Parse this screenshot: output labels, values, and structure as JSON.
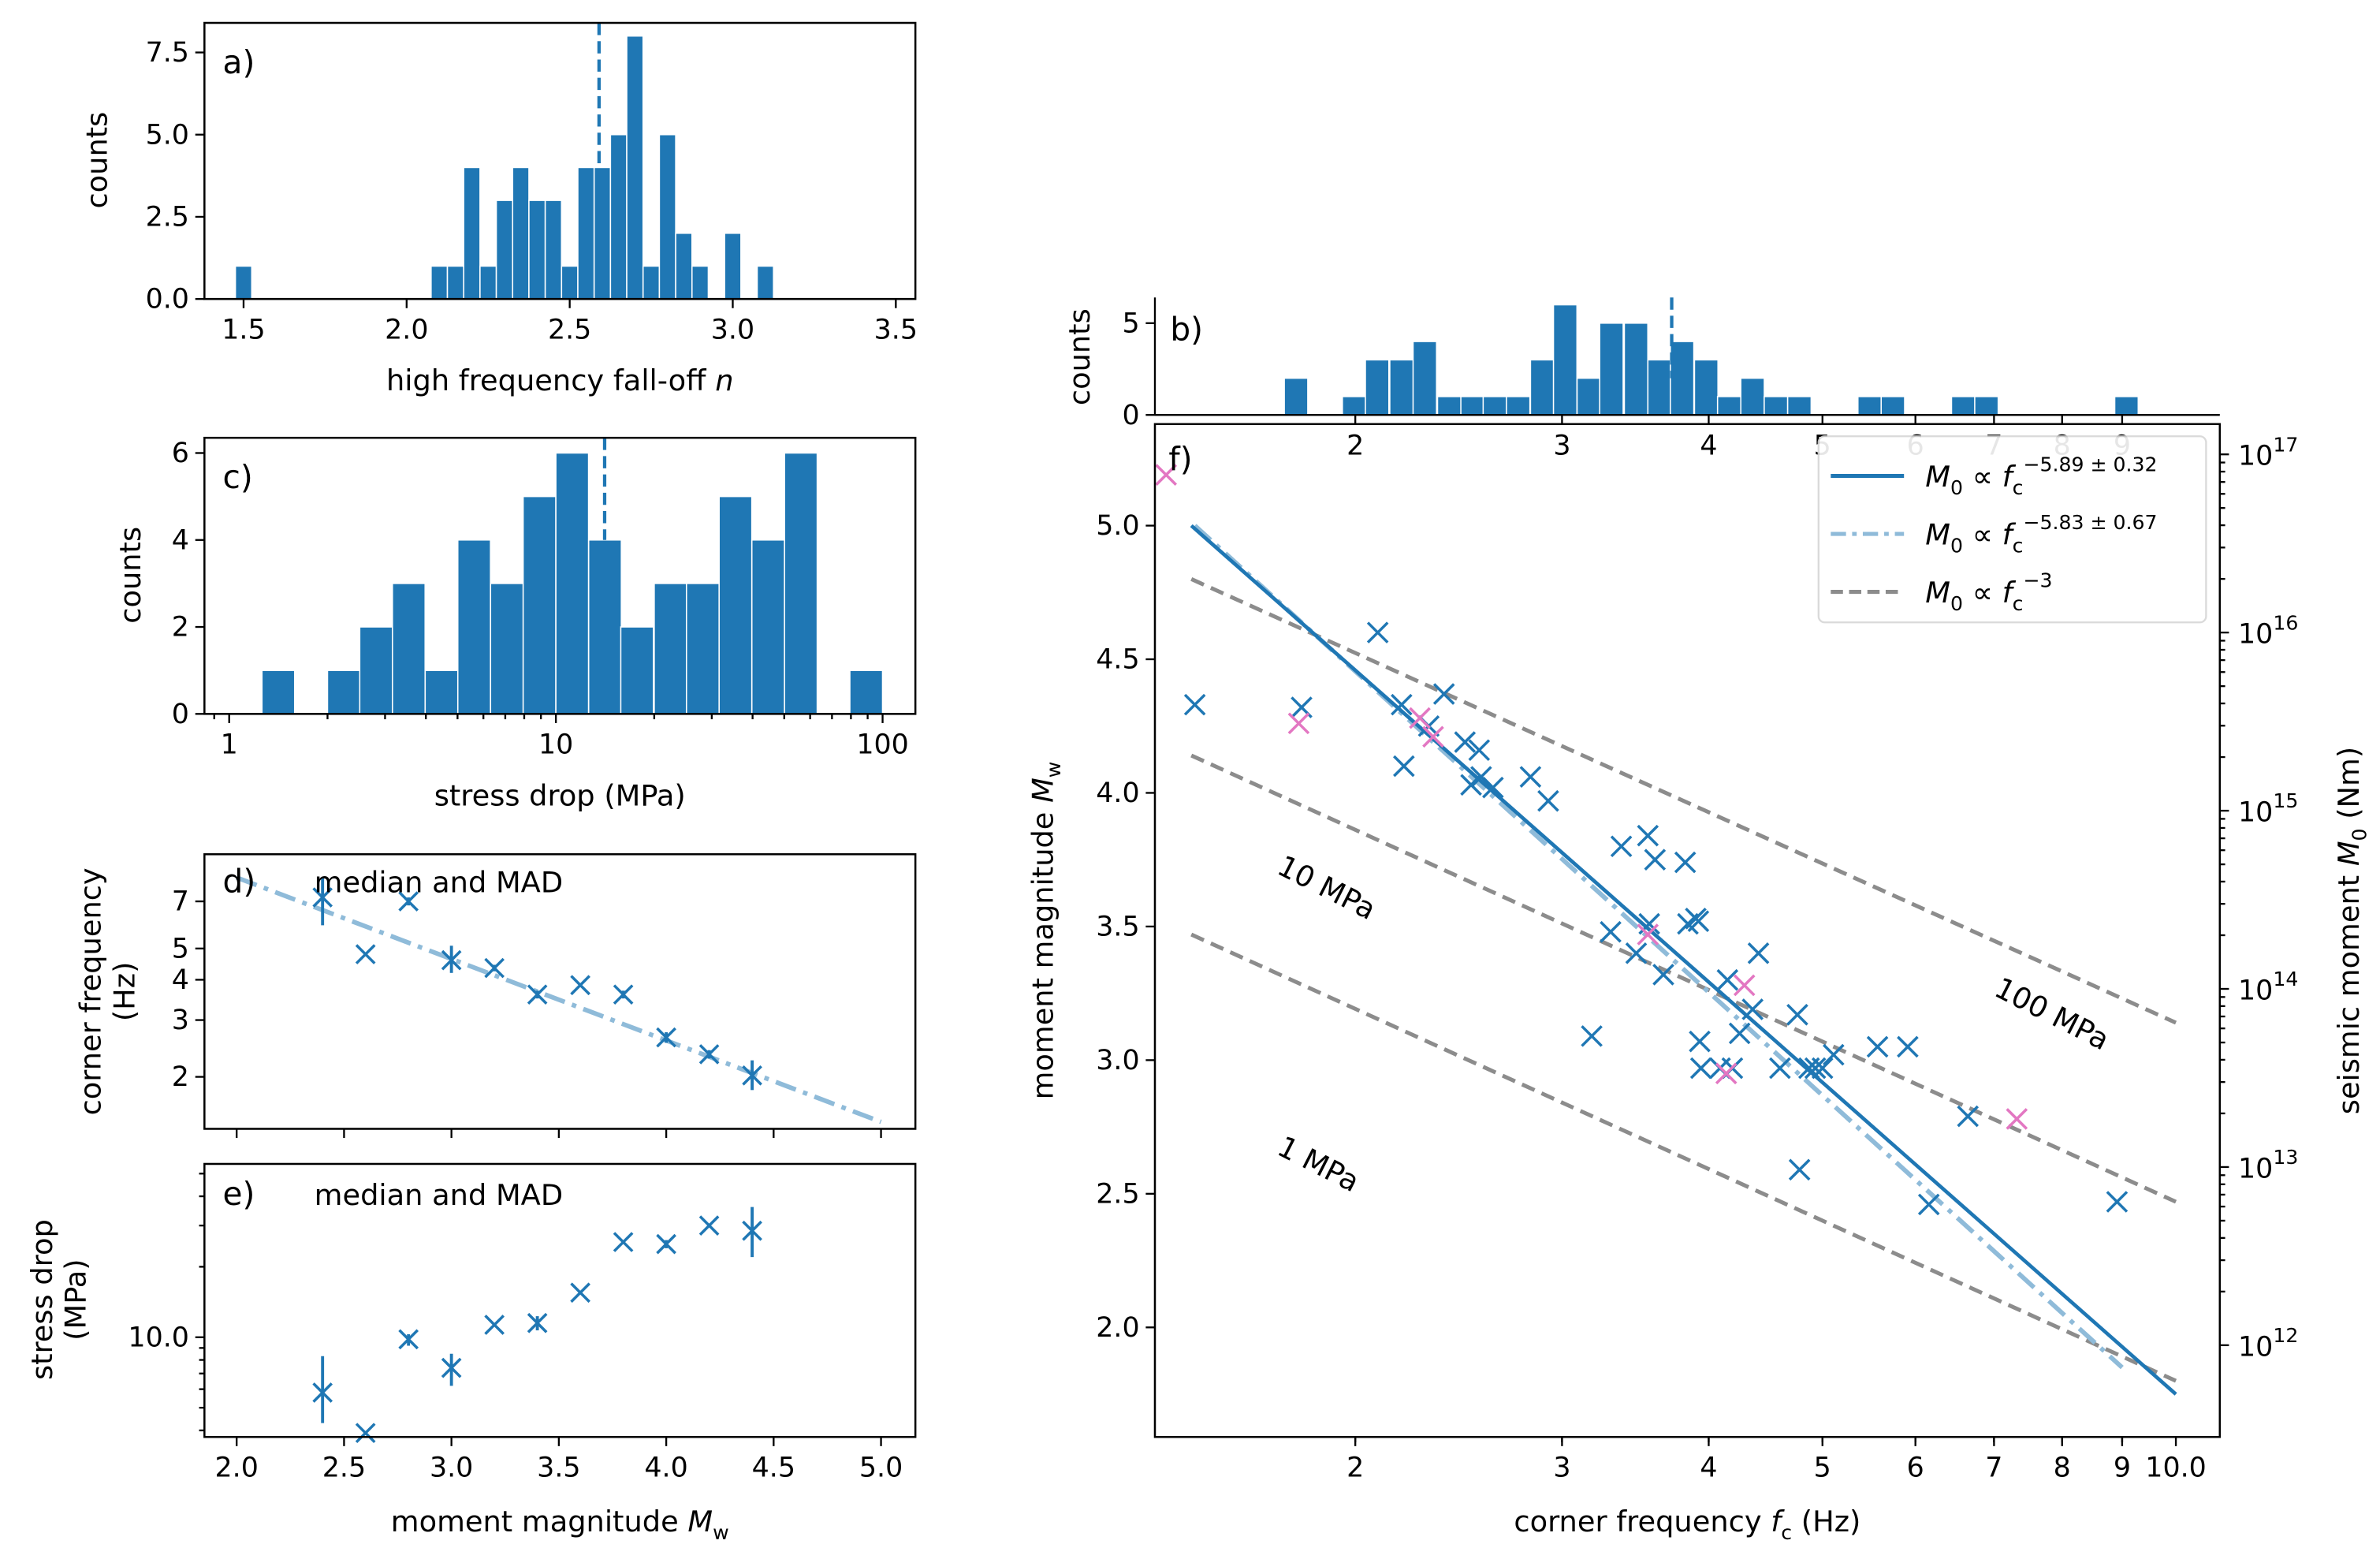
{
  "colors": {
    "bar": "#1f77b4",
    "marker_main": "#1f77b4",
    "marker_highlight": "#e377c2",
    "fit_solid": "#1f77b4",
    "fit_dashdot": "#8fbbd9",
    "stress_lines": "#8c8c8c"
  },
  "chart_data": [
    {
      "id": "a",
      "type": "bar",
      "panel_label": "a)",
      "xlabel": "high frequency fall-off n",
      "ylabel": "counts",
      "xlim": [
        1.38,
        3.56
      ],
      "ylim": [
        0,
        8.4
      ],
      "xticks": [
        1.5,
        2.0,
        2.5,
        3.0,
        3.5
      ],
      "xtick_labels": [
        "1.5",
        "2.0",
        "2.5",
        "3.0",
        "3.5"
      ],
      "yticks": [
        0.0,
        2.5,
        5.0,
        7.5
      ],
      "ytick_labels": [
        "0.0",
        "2.5",
        "5.0",
        "7.5"
      ],
      "bin_width": 0.05,
      "bin_starts": [
        1.475,
        2.075,
        2.125,
        2.175,
        2.225,
        2.275,
        2.325,
        2.375,
        2.425,
        2.475,
        2.525,
        2.575,
        2.625,
        2.675,
        2.725,
        2.775,
        2.825,
        2.875,
        2.975,
        3.075
      ],
      "values": [
        1,
        1,
        1,
        4,
        1,
        3,
        4,
        3,
        3,
        1,
        4,
        4,
        5,
        8,
        1,
        5,
        2,
        1,
        2,
        1
      ],
      "median_line": 2.59
    },
    {
      "id": "b",
      "type": "bar",
      "panel_label": "b)",
      "xlabel": "",
      "ylabel": "counts",
      "xscale": "log",
      "xlim": [
        1.35,
        10.9
      ],
      "ylim": [
        0,
        6.4
      ],
      "yticks": [
        0,
        5
      ],
      "ytick_labels": [
        "0",
        "5"
      ],
      "xticks": [
        2,
        3,
        4,
        5,
        6,
        7,
        8,
        9
      ],
      "xtick_labels": [
        "2",
        "3",
        "4",
        "5",
        "6",
        "7",
        "8",
        "9"
      ],
      "bin_log_width": 0.02,
      "bin_starts": [
        1.74,
        1.95,
        2.04,
        2.14,
        2.24,
        2.35,
        2.46,
        2.57,
        2.69,
        2.82,
        2.95,
        3.09,
        3.23,
        3.39,
        3.55,
        3.71,
        3.89,
        4.07,
        4.26,
        4.46,
        4.67,
        5.36,
        5.61,
        6.44,
        6.74,
        8.87
      ],
      "values": [
        2,
        1,
        3,
        3,
        4,
        1,
        1,
        1,
        1,
        3,
        6,
        2,
        5,
        5,
        3,
        4,
        3,
        1,
        2,
        1,
        1,
        1,
        1,
        1,
        1,
        1
      ],
      "median_line": 3.72
    },
    {
      "id": "c",
      "type": "bar",
      "panel_label": "c)",
      "xlabel": "stress drop (MPa)",
      "ylabel": "counts",
      "xscale": "log",
      "xlim": [
        0.84,
        126
      ],
      "ylim": [
        0,
        6.35
      ],
      "xticks": [
        1,
        10,
        100
      ],
      "xtick_labels": [
        "1",
        "10",
        "100"
      ],
      "yticks": [
        0,
        2,
        4,
        6
      ],
      "ytick_labels": [
        "0",
        "2",
        "4",
        "6"
      ],
      "bin_log_width": 0.1,
      "bin_starts": [
        1.26,
        2.0,
        2.51,
        3.16,
        3.98,
        5.01,
        6.31,
        7.94,
        10.0,
        12.6,
        15.8,
        20.0,
        25.1,
        31.6,
        39.8,
        50.1,
        79.4
      ],
      "values": [
        1,
        1,
        2,
        3,
        1,
        4,
        3,
        5,
        6,
        4,
        2,
        3,
        3,
        5,
        4,
        6,
        1
      ],
      "median_line": 14.1
    },
    {
      "id": "d",
      "type": "scatter",
      "panel_label": "d)",
      "annotation": "median and MAD",
      "xlabel": "",
      "ylabel": "corner frequency (Hz)",
      "yscale": "log",
      "xlim": [
        1.85,
        5.16
      ],
      "ylim": [
        1.38,
        9.8
      ],
      "xticks": [
        2.0,
        2.5,
        3.0,
        3.5,
        4.0,
        4.5,
        5.0
      ],
      "yticks": [
        2,
        3,
        4,
        5,
        7
      ],
      "ytick_labels": [
        "2",
        "3",
        "4",
        "5",
        "7"
      ],
      "x": [
        2.4,
        2.6,
        2.8,
        3.0,
        3.2,
        3.4,
        3.6,
        3.8,
        4.0,
        4.2,
        4.4
      ],
      "y": [
        7.2,
        4.8,
        7.0,
        4.6,
        4.35,
        3.6,
        3.85,
        3.6,
        2.65,
        2.35,
        2.02
      ],
      "yerr_low": [
        5.9,
        4.8,
        6.8,
        4.2,
        4.25,
        3.5,
        3.85,
        3.5,
        2.55,
        2.28,
        1.82
      ],
      "yerr_high": [
        8.3,
        4.8,
        7.2,
        5.1,
        4.45,
        3.7,
        3.85,
        3.7,
        2.75,
        2.42,
        2.25
      ],
      "fit_line": {
        "x": [
          2.0,
          5.0
        ],
        "y": [
          8.3,
          1.45
        ]
      }
    },
    {
      "id": "e",
      "type": "scatter",
      "panel_label": "e)",
      "annotation": "median and MAD",
      "xlabel": "moment magnitude Mw",
      "ylabel": "stress drop (MPa)",
      "yscale": "log",
      "xlim": [
        1.85,
        5.16
      ],
      "ylim": [
        3.75,
        55
      ],
      "xticks": [
        2.0,
        2.5,
        3.0,
        3.5,
        4.0,
        4.5,
        5.0
      ],
      "xtick_labels": [
        "2.0",
        "2.5",
        "3.0",
        "3.5",
        "4.0",
        "4.5",
        "5.0"
      ],
      "yticks": [
        10.0
      ],
      "ytick_labels": [
        "10.0"
      ],
      "x": [
        2.4,
        2.6,
        2.8,
        3.0,
        3.2,
        3.4,
        3.6,
        3.8,
        4.0,
        4.2,
        4.4
      ],
      "y": [
        5.8,
        3.9,
        9.8,
        7.4,
        11.3,
        11.5,
        15.5,
        25.5,
        25.0,
        30.0,
        28.5
      ],
      "yerr_low": [
        4.3,
        3.9,
        9.2,
        6.2,
        11.3,
        10.7,
        15.5,
        25.0,
        24.0,
        30.0,
        22.0
      ],
      "yerr_high": [
        8.3,
        3.9,
        10.3,
        8.5,
        11.3,
        12.3,
        15.5,
        26.0,
        26.0,
        30.0,
        36.0
      ]
    },
    {
      "id": "f",
      "type": "scatter",
      "panel_label": "f)",
      "xlabel": "corner frequency fc (Hz)",
      "ylabel": "moment magnitude Mw",
      "ylabel_right": "seismic moment M0 (Nm)",
      "xscale": "log",
      "xlim": [
        1.35,
        10.9
      ],
      "ylim": [
        1.59,
        5.38
      ],
      "xticks": [
        2,
        3,
        4,
        5,
        6,
        7,
        8,
        9,
        10
      ],
      "xtick_labels": [
        "2",
        "3",
        "4",
        "5",
        "6",
        "7",
        "8",
        "9",
        "10.0"
      ],
      "yticks": [
        2.0,
        2.5,
        3.0,
        3.5,
        4.0,
        4.5,
        5.0
      ],
      "ytick_labels": [
        "2.0",
        "2.5",
        "3.0",
        "3.5",
        "4.0",
        "4.5",
        "5.0"
      ],
      "right_ticks_exponents": [
        12,
        13,
        14,
        15,
        16,
        17
      ],
      "points": [
        {
          "fc": 1.46,
          "mw": 4.33
        },
        {
          "fc": 1.8,
          "mw": 4.32
        },
        {
          "fc": 2.09,
          "mw": 4.6
        },
        {
          "fc": 2.19,
          "mw": 4.33
        },
        {
          "fc": 2.2,
          "mw": 4.1
        },
        {
          "fc": 2.31,
          "mw": 4.25
        },
        {
          "fc": 2.38,
          "mw": 4.37
        },
        {
          "fc": 2.48,
          "mw": 4.19
        },
        {
          "fc": 2.51,
          "mw": 4.03
        },
        {
          "fc": 2.55,
          "mw": 4.16
        },
        {
          "fc": 2.56,
          "mw": 4.06
        },
        {
          "fc": 2.62,
          "mw": 4.02
        },
        {
          "fc": 2.82,
          "mw": 4.06
        },
        {
          "fc": 2.92,
          "mw": 3.97
        },
        {
          "fc": 3.18,
          "mw": 3.09
        },
        {
          "fc": 3.3,
          "mw": 3.48
        },
        {
          "fc": 3.37,
          "mw": 3.8
        },
        {
          "fc": 3.47,
          "mw": 3.4
        },
        {
          "fc": 3.55,
          "mw": 3.84
        },
        {
          "fc": 3.56,
          "mw": 3.51
        },
        {
          "fc": 3.6,
          "mw": 3.75
        },
        {
          "fc": 3.66,
          "mw": 3.32
        },
        {
          "fc": 3.82,
          "mw": 3.74
        },
        {
          "fc": 3.84,
          "mw": 3.51
        },
        {
          "fc": 3.9,
          "mw": 3.53
        },
        {
          "fc": 3.92,
          "mw": 3.52
        },
        {
          "fc": 3.93,
          "mw": 3.07
        },
        {
          "fc": 3.94,
          "mw": 2.97
        },
        {
          "fc": 4.09,
          "mw": 2.97
        },
        {
          "fc": 4.15,
          "mw": 3.3
        },
        {
          "fc": 4.19,
          "mw": 2.97
        },
        {
          "fc": 4.25,
          "mw": 3.1
        },
        {
          "fc": 4.36,
          "mw": 3.19
        },
        {
          "fc": 4.41,
          "mw": 3.4
        },
        {
          "fc": 4.6,
          "mw": 2.97
        },
        {
          "fc": 4.76,
          "mw": 3.17
        },
        {
          "fc": 4.78,
          "mw": 2.59
        },
        {
          "fc": 4.87,
          "mw": 2.97
        },
        {
          "fc": 4.93,
          "mw": 2.97
        },
        {
          "fc": 5.0,
          "mw": 2.97
        },
        {
          "fc": 5.11,
          "mw": 3.02
        },
        {
          "fc": 5.57,
          "mw": 3.05
        },
        {
          "fc": 5.91,
          "mw": 3.05
        },
        {
          "fc": 6.16,
          "mw": 2.46
        },
        {
          "fc": 6.65,
          "mw": 2.79
        },
        {
          "fc": 8.91,
          "mw": 2.47
        }
      ],
      "highlight_points": [
        {
          "fc": 1.38,
          "mw": 5.19
        },
        {
          "fc": 1.79,
          "mw": 4.26
        },
        {
          "fc": 2.27,
          "mw": 4.28
        },
        {
          "fc": 2.33,
          "mw": 4.21
        },
        {
          "fc": 3.55,
          "mw": 3.47
        },
        {
          "fc": 4.14,
          "mw": 2.95
        },
        {
          "fc": 4.29,
          "mw": 3.28
        },
        {
          "fc": 7.32,
          "mw": 2.78
        }
      ],
      "fit_lines": [
        {
          "label": "M0 ∝ fc^(−5.89 ± 0.32)",
          "style": "solid",
          "x": [
            1.45,
            10.0
          ],
          "y": [
            5.0,
            1.75
          ]
        },
        {
          "label": "M0 ∝ fc^(−5.83 ± 0.67)",
          "style": "dashdot",
          "x": [
            1.46,
            9.0
          ],
          "y": [
            5.0,
            1.85
          ]
        }
      ],
      "stress_lines": [
        {
          "label": "1 MPa",
          "x": [
            1.45,
            10.0
          ],
          "y": [
            3.47,
            1.8
          ]
        },
        {
          "label": "10 MPa",
          "x": [
            1.45,
            10.0
          ],
          "y": [
            4.14,
            2.47
          ]
        },
        {
          "label": "100 MPa",
          "x": [
            1.45,
            10.0
          ],
          "y": [
            4.8,
            3.14
          ]
        }
      ],
      "legend": {
        "placement": "top-right",
        "entries": [
          {
            "base": "M",
            "sub": "0",
            "rel": " ∝ ",
            "var": "f",
            "varsub": "c",
            "exp": "−5.89 ± 0.32",
            "style": "solid"
          },
          {
            "base": "M",
            "sub": "0",
            "rel": " ∝ ",
            "var": "f",
            "varsub": "c",
            "exp": "−5.83 ± 0.67",
            "style": "dashdot"
          },
          {
            "base": "M",
            "sub": "0",
            "rel": " ∝ ",
            "var": "f",
            "varsub": "c",
            "exp": "−3",
            "style": "dashed"
          }
        ]
      }
    }
  ],
  "text": {
    "a_xlabel_main": "high frequency fall-off ",
    "a_xlabel_var": "n",
    "counts": "counts",
    "c_xlabel": "stress drop (MPa)",
    "d_ylabel_1": "corner frequency",
    "d_ylabel_2": "(Hz)",
    "e_ylabel_1": "stress drop",
    "e_ylabel_2": "(MPa)",
    "e_xlabel_main": "moment magnitude ",
    "e_xlabel_var": "M",
    "e_xlabel_sub": "w",
    "f_xlabel_main": "corner frequency ",
    "f_xlabel_var": "f",
    "f_xlabel_sub": "c",
    "f_xlabel_unit": " (Hz)",
    "f_ylabel_main": "moment magnitude ",
    "f_ylabel_var": "M",
    "f_ylabel_sub": "w",
    "f_ylabel_right_main": "seismic moment ",
    "f_ylabel_right_var": "M",
    "f_ylabel_right_sub": "0",
    "f_ylabel_right_unit": " (Nm)",
    "median_mad": "median and MAD",
    "label_a": "a)",
    "label_b": "b)",
    "label_c": "c)",
    "label_d": "d)",
    "label_e": "e)",
    "label_f": "f)",
    "stress_1": "1 MPa",
    "stress_10": "10 MPa",
    "stress_100": "100 MPa"
  }
}
